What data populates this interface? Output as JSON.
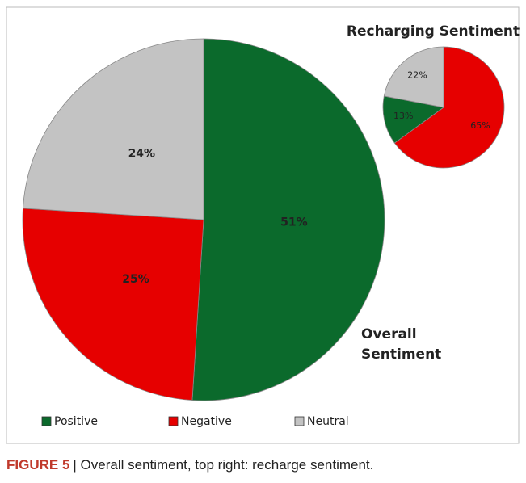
{
  "chart_data": [
    {
      "type": "pie",
      "title": "Overall Sentiment",
      "categories": [
        "Positive",
        "Negative",
        "Neutral"
      ],
      "values": [
        51,
        25,
        24
      ],
      "value_labels": [
        "51%",
        "25%",
        "24%"
      ],
      "colors": [
        "#0b6a2c",
        "#e60000",
        "#c3c3c3"
      ],
      "legend": "bottom"
    },
    {
      "type": "pie",
      "title": "Recharging Sentiment",
      "categories": [
        "Negative",
        "Positive",
        "Neutral"
      ],
      "values": [
        65,
        13,
        22
      ],
      "value_labels": [
        "65%",
        "13%",
        "22%"
      ],
      "colors": [
        "#e60000",
        "#0b6a2c",
        "#c3c3c3"
      ]
    }
  ],
  "caption": {
    "label": "FIGURE 5",
    "text": "| Overall sentiment, top right: recharge sentiment."
  }
}
